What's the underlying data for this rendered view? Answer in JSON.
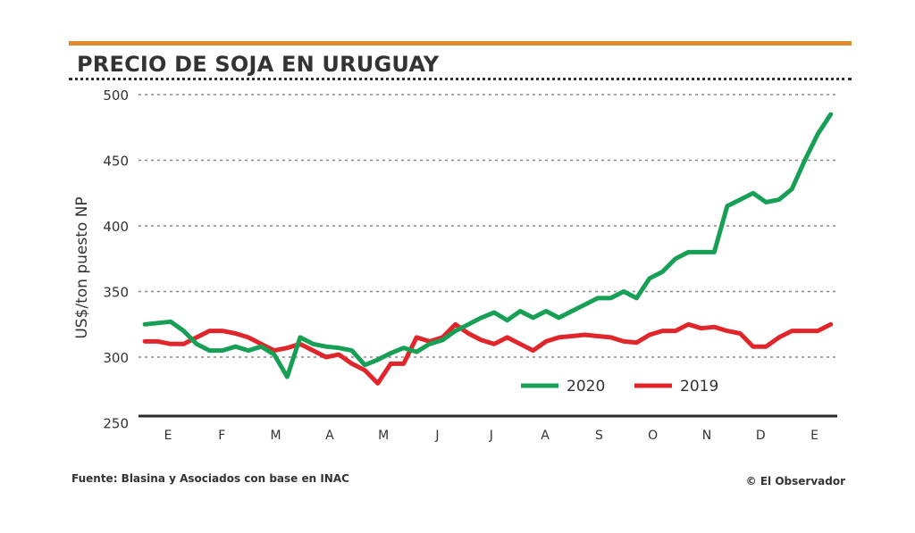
{
  "chart_data": {
    "type": "line",
    "title": "PRECIO DE SOJA EN URUGUAY",
    "xlabel": "",
    "ylabel": "US$/ton puesto NP",
    "ylim": [
      250,
      500
    ],
    "yticks": [
      250,
      300,
      350,
      400,
      450,
      500
    ],
    "xtick_labels": [
      "E",
      "F",
      "M",
      "A",
      "M",
      "J",
      "J",
      "A",
      "S",
      "O",
      "N",
      "D",
      "E"
    ],
    "x_unit": "month index (0 = E)",
    "grid": "horizontal dotted",
    "legend_position": "bottom-center",
    "series": [
      {
        "name": "2020",
        "color": "#17a055",
        "x_start": -0.43,
        "x_end": 12.3,
        "values": [
          325,
          326,
          327,
          320,
          310,
          305,
          305,
          308,
          305,
          308,
          302,
          285,
          315,
          310,
          308,
          307,
          305,
          294,
          298,
          303,
          307,
          304,
          310,
          313,
          320,
          325,
          330,
          334,
          328,
          335,
          330,
          335,
          330,
          335,
          340,
          345,
          345,
          350,
          345,
          360,
          365,
          375,
          380,
          380,
          380,
          415,
          420,
          425,
          418,
          420,
          428,
          450,
          470,
          485
        ]
      },
      {
        "name": "2019",
        "color": "#e0262b",
        "x_start": -0.43,
        "x_end": 12.3,
        "values": [
          312,
          312,
          310,
          310,
          315,
          320,
          320,
          318,
          315,
          310,
          305,
          307,
          310,
          305,
          300,
          302,
          295,
          290,
          280,
          295,
          295,
          315,
          312,
          315,
          325,
          318,
          313,
          310,
          315,
          310,
          305,
          312,
          315,
          316,
          317,
          316,
          315,
          312,
          311,
          317,
          320,
          320,
          325,
          322,
          323,
          320,
          318,
          308,
          308,
          315,
          320,
          320,
          320,
          325
        ]
      }
    ]
  },
  "footer": {
    "source": "Fuente: Blasina y Asociados con base en INAC",
    "credit": "© El Observador"
  }
}
